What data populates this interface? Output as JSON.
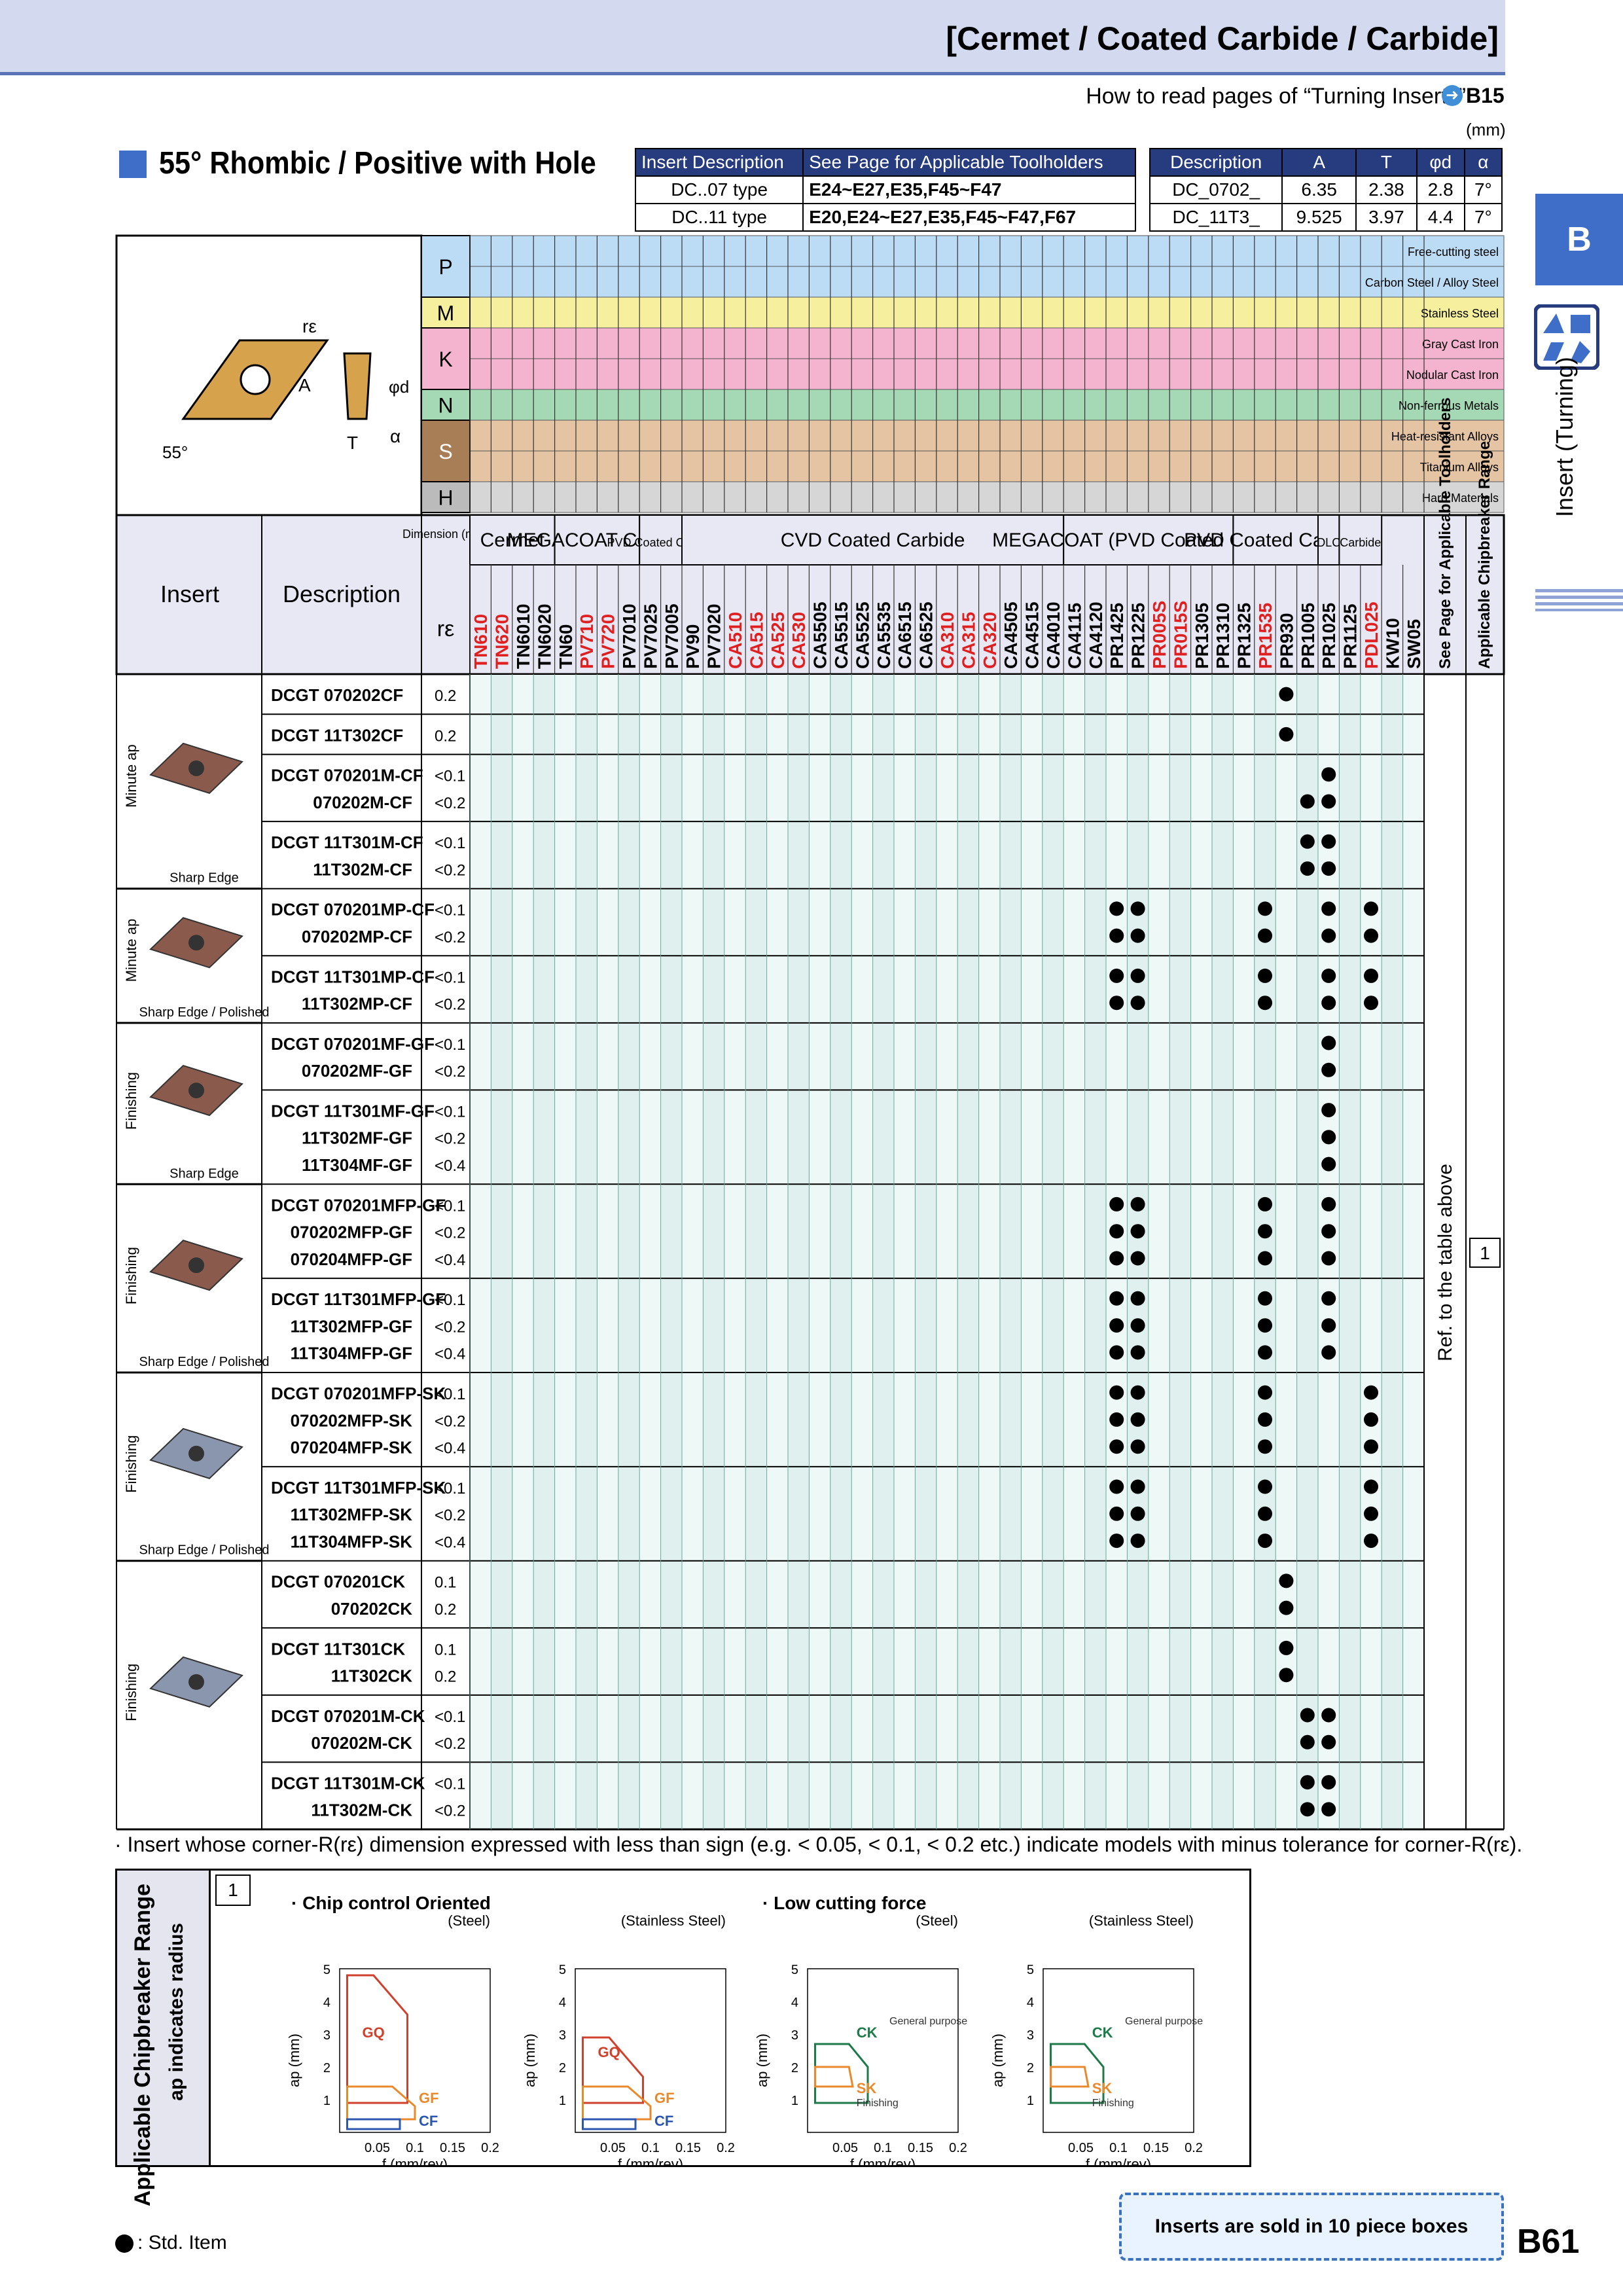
{
  "header": {
    "title": "[Cermet / Coated Carbide / Carbide]"
  },
  "howto": {
    "text": "How to read pages of “Turning Inserts”",
    "page": "B15",
    "unit": "(mm)"
  },
  "section_title": "55° Rhombic / Positive with Hole",
  "desc_table": {
    "h1": "Insert Description",
    "h2": "See Page for Applicable Toolholders",
    "rows": [
      {
        "type": "DC..07 type",
        "pages": "E24~E27,E35,F45~F47"
      },
      {
        "type": "DC..11 type",
        "pages": "E20,E24~E27,E35,F45~F47,F67"
      }
    ]
  },
  "dim_table": {
    "headers": [
      "Description",
      "A",
      "T",
      "φd",
      "α"
    ],
    "rows": [
      [
        "DC_0702_",
        "6.35",
        "2.38",
        "2.8",
        "7°"
      ],
      [
        "DC_11T3_",
        "9.525",
        "3.97",
        "4.4",
        "7°"
      ]
    ]
  },
  "side": {
    "tab": "B",
    "label": "Insert (Turning)"
  },
  "materials": [
    {
      "code": "P",
      "name": "Free-cutting steel",
      "color": "#bcdcf6"
    },
    {
      "code": "P",
      "name": "Carbon Steel / Alloy Steel",
      "color": "#bcdcf6"
    },
    {
      "code": "M",
      "name": "Stainless Steel",
      "color": "#f6f09e"
    },
    {
      "code": "K",
      "name": "Gray Cast Iron",
      "color": "#f4b4cf"
    },
    {
      "code": "K",
      "name": "Nodular Cast Iron",
      "color": "#f4b4cf"
    },
    {
      "code": "N",
      "name": "Non-ferrous Metals",
      "color": "#a5d9b5"
    },
    {
      "code": "S",
      "name": "Heat-resistant Alloys",
      "color": "#e4c4a2"
    },
    {
      "code": "S",
      "name": "Titanium Alloys",
      "color": "#e4c4a2"
    },
    {
      "code": "H",
      "name": "Hard Materials",
      "color": "#d6d6d6"
    }
  ],
  "drawing_labels": {
    "re": "rε",
    "A": "A",
    "phid": "φd",
    "T": "T",
    "alpha": "α",
    "angle": "55°"
  },
  "col_headers": {
    "insert": "Insert",
    "description": "Description",
    "dimension": "Dimension (mm)",
    "re": "rε",
    "groups": [
      {
        "label": "Cermet",
        "span": 4
      },
      {
        "label": "MEGACOAT Cermet",
        "span": 4
      },
      {
        "label": "PVD Coated Cermet",
        "span": 2
      },
      {
        "label": "CVD Coated Carbide",
        "span": 18
      },
      {
        "label": "MEGACOAT (PVD Coated Carbide)",
        "span": 8
      },
      {
        "label": "PVD Coated Carbide",
        "span": 4
      },
      {
        "label": "DLC",
        "span": 1
      },
      {
        "label": "Carbide",
        "span": 2
      }
    ],
    "see_page": "See Page for Applicable Toolholders",
    "chipbreaker": "Applicable Chipbreaker Range"
  },
  "grades": [
    {
      "n": "TN610",
      "c": "#e02020"
    },
    {
      "n": "TN620",
      "c": "#e02020"
    },
    {
      "n": "TN6010",
      "c": "#000"
    },
    {
      "n": "TN6020",
      "c": "#000"
    },
    {
      "n": "TN60",
      "c": "#000"
    },
    {
      "n": "PV710",
      "c": "#e02020"
    },
    {
      "n": "PV720",
      "c": "#e02020"
    },
    {
      "n": "PV7010",
      "c": "#000"
    },
    {
      "n": "PV7025",
      "c": "#000"
    },
    {
      "n": "PV7005",
      "c": "#000"
    },
    {
      "n": "PV90",
      "c": "#000"
    },
    {
      "n": "PV7020",
      "c": "#000"
    },
    {
      "n": "CA510",
      "c": "#e02020"
    },
    {
      "n": "CA515",
      "c": "#e02020"
    },
    {
      "n": "CA525",
      "c": "#e02020"
    },
    {
      "n": "CA530",
      "c": "#e02020"
    },
    {
      "n": "CA5505",
      "c": "#000"
    },
    {
      "n": "CA5515",
      "c": "#000"
    },
    {
      "n": "CA5525",
      "c": "#000"
    },
    {
      "n": "CA5535",
      "c": "#000"
    },
    {
      "n": "CA6515",
      "c": "#000"
    },
    {
      "n": "CA6525",
      "c": "#000"
    },
    {
      "n": "CA310",
      "c": "#e02020"
    },
    {
      "n": "CA315",
      "c": "#e02020"
    },
    {
      "n": "CA320",
      "c": "#e02020"
    },
    {
      "n": "CA4505",
      "c": "#000"
    },
    {
      "n": "CA4515",
      "c": "#000"
    },
    {
      "n": "CA4010",
      "c": "#000"
    },
    {
      "n": "CA4115",
      "c": "#000"
    },
    {
      "n": "CA4120",
      "c": "#000"
    },
    {
      "n": "PR1425",
      "c": "#000"
    },
    {
      "n": "PR1225",
      "c": "#000"
    },
    {
      "n": "PR005S",
      "c": "#e02020"
    },
    {
      "n": "PR015S",
      "c": "#e02020"
    },
    {
      "n": "PR1305",
      "c": "#000"
    },
    {
      "n": "PR1310",
      "c": "#000"
    },
    {
      "n": "PR1325",
      "c": "#000"
    },
    {
      "n": "PR1535",
      "c": "#e02020"
    },
    {
      "n": "PR930",
      "c": "#000"
    },
    {
      "n": "PR1005",
      "c": "#000"
    },
    {
      "n": "PR1025",
      "c": "#000"
    },
    {
      "n": "PR1125",
      "c": "#000"
    },
    {
      "n": "PDL025",
      "c": "#e02020"
    },
    {
      "n": "KW10",
      "c": "#000"
    },
    {
      "n": "SW05",
      "c": "#000"
    }
  ],
  "groups": [
    {
      "cat": "Minute ap",
      "edge": "Sharp Edge",
      "rows": [
        {
          "d": [
            "DCGT 070202CF"
          ],
          "r": [
            "0.2"
          ]
        },
        {
          "d": [
            "DCGT 11T302CF"
          ],
          "r": [
            "0.2"
          ]
        },
        {
          "d": [
            "DCGT 070201M-CF",
            "070202M-CF"
          ],
          "r": [
            "<0.1",
            "<0.2"
          ]
        },
        {
          "d": [
            "DCGT 11T301M-CF",
            "11T302M-CF"
          ],
          "r": [
            "<0.1",
            "<0.2"
          ]
        }
      ]
    },
    {
      "cat": "Minute ap",
      "edge": "Sharp Edge / Polished",
      "rows": [
        {
          "d": [
            "DCGT 070201MP-CF",
            "070202MP-CF"
          ],
          "r": [
            "<0.1",
            "<0.2"
          ]
        },
        {
          "d": [
            "DCGT 11T301MP-CF",
            "11T302MP-CF"
          ],
          "r": [
            "<0.1",
            "<0.2"
          ]
        }
      ]
    },
    {
      "cat": "Finishing",
      "edge": "Sharp Edge",
      "rows": [
        {
          "d": [
            "DCGT 070201MF-GF",
            "070202MF-GF"
          ],
          "r": [
            "<0.1",
            "<0.2"
          ]
        },
        {
          "d": [
            "DCGT 11T301MF-GF",
            "11T302MF-GF",
            "11T304MF-GF"
          ],
          "r": [
            "<0.1",
            "<0.2",
            "<0.4"
          ]
        }
      ]
    },
    {
      "cat": "Finishing",
      "edge": "Sharp Edge / Polished",
      "rows": [
        {
          "d": [
            "DCGT 070201MFP-GF",
            "070202MFP-GF",
            "070204MFP-GF"
          ],
          "r": [
            "<0.1",
            "<0.2",
            "<0.4"
          ]
        },
        {
          "d": [
            "DCGT 11T301MFP-GF",
            "11T302MFP-GF",
            "11T304MFP-GF"
          ],
          "r": [
            "<0.1",
            "<0.2",
            "<0.4"
          ]
        }
      ]
    },
    {
      "cat": "Finishing",
      "edge": "Sharp Edge / Polished",
      "rows": [
        {
          "d": [
            "DCGT 070201MFP-SK",
            "070202MFP-SK",
            "070204MFP-SK"
          ],
          "r": [
            "<0.1",
            "<0.2",
            "<0.4"
          ]
        },
        {
          "d": [
            "DCGT 11T301MFP-SK",
            "11T302MFP-SK",
            "11T304MFP-SK"
          ],
          "r": [
            "<0.1",
            "<0.2",
            "<0.4"
          ]
        }
      ]
    },
    {
      "cat": "Finishing",
      "edge": "",
      "rows": [
        {
          "d": [
            "DCGT 070201CK",
            "070202CK"
          ],
          "r": [
            "0.1",
            "0.2"
          ]
        },
        {
          "d": [
            "DCGT 11T301CK",
            "11T302CK"
          ],
          "r": [
            "0.1",
            "0.2"
          ]
        },
        {
          "d": [
            "DCGT 070201M-CK",
            "070202M-CK"
          ],
          "r": [
            "<0.1",
            "<0.2"
          ]
        },
        {
          "d": [
            "DCGT 11T301M-CK",
            "11T302M-CK"
          ],
          "r": [
            "<0.1",
            "<0.2"
          ]
        }
      ]
    }
  ],
  "ref_text": "Ref. to the table above",
  "chip_range_number": "1",
  "footnote": "· Insert whose corner-R(rε) dimension expressed with less than sign (e.g. < 0.05, < 0.1, < 0.2 etc.) indicate models with minus tolerance for corner-R(rε).",
  "chip_panel": {
    "title": "Applicable Chipbreaker Range",
    "subtitle": "ap indicates radius",
    "number": "1",
    "section1": "· Chip control Oriented",
    "section2": "· Low cutting force",
    "charts": [
      {
        "sub": "(Steel)",
        "labels": [
          "GQ",
          "GF",
          "CF"
        ]
      },
      {
        "sub": "(Stainless Steel)",
        "labels": [
          "GQ",
          "GF",
          "CF"
        ]
      },
      {
        "sub": "(Steel)",
        "labels": [
          "CK",
          "General purpose",
          "SK",
          "Finishing"
        ]
      },
      {
        "sub": "(Stainless Steel)",
        "labels": [
          "CK",
          "General purpose",
          "SK",
          "Finishing"
        ]
      }
    ],
    "ylabel": "ap (mm)",
    "xlabel": "f (mm/rev)",
    "yticks": [
      "1",
      "2",
      "3",
      "4",
      "5"
    ],
    "xticks": [
      "0.05",
      "0.1",
      "0.15",
      "0.2"
    ]
  },
  "legend": {
    "text": ": Std. Item"
  },
  "boxes_note": "Inserts are sold in 10 piece boxes",
  "page_number": "B61"
}
